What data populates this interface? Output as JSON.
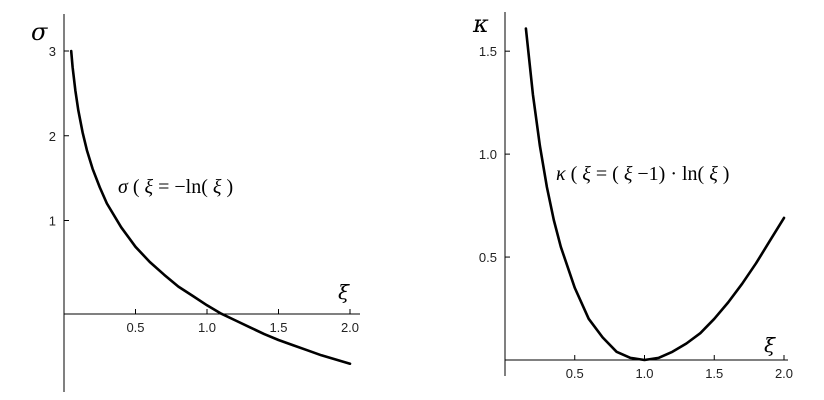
{
  "chart_data": [
    {
      "type": "line",
      "ylabel": "σ",
      "xlabel": "ξ",
      "xlim": [
        0.0,
        2.0
      ],
      "ylim": [
        -1.0,
        3.0
      ],
      "x_ticks": [
        0.5,
        1.0,
        1.5,
        2.0
      ],
      "x_tick_labels": [
        "0.5",
        "1.0",
        "1.5",
        "2.0"
      ],
      "y_ticks": [
        1,
        2,
        3
      ],
      "y_tick_labels": [
        "1",
        "2",
        "3"
      ],
      "annotation": {
        "name": "σ",
        "arg": "ξ",
        "equals": " = −ln(",
        "end": ")"
      },
      "grid": false,
      "series": [
        {
          "x": [
            0.05,
            0.06,
            0.08,
            0.1,
            0.13,
            0.16,
            0.2,
            0.25,
            0.3,
            0.4,
            0.5,
            0.6,
            0.7,
            0.8,
            0.9,
            1.0,
            1.1,
            1.2,
            1.3,
            1.4,
            1.5,
            1.6,
            1.7,
            1.8,
            1.9,
            2.0
          ],
          "y": [
            3.0,
            2.81,
            2.53,
            2.3,
            2.04,
            1.83,
            1.61,
            1.39,
            1.2,
            0.92,
            0.69,
            0.51,
            0.36,
            0.22,
            0.11,
            0.0,
            -0.1,
            -0.18,
            -0.26,
            -0.34,
            -0.41,
            -0.47,
            -0.53,
            -0.59,
            -0.64,
            -0.69
          ]
        }
      ]
    },
    {
      "type": "line",
      "ylabel": "κ",
      "xlabel": "ξ",
      "xlim": [
        0.0,
        2.0
      ],
      "ylim": [
        0.0,
        1.7
      ],
      "x_ticks": [
        0.5,
        1.0,
        1.5,
        2.0
      ],
      "x_tick_labels": [
        "0.5",
        "1.0",
        "1.5",
        "2.0"
      ],
      "y_ticks": [
        0.5,
        1.0,
        1.5
      ],
      "y_tick_labels": [
        "0.5",
        "1.0",
        "1.5"
      ],
      "annotation": {
        "name": "κ",
        "arg": "ξ",
        "equals": " = (",
        "mid": " −1) · ln(",
        "end": ")"
      },
      "grid": false,
      "series": [
        {
          "x": [
            0.15,
            0.2,
            0.25,
            0.3,
            0.35,
            0.4,
            0.5,
            0.6,
            0.7,
            0.8,
            0.9,
            1.0,
            1.1,
            1.2,
            1.3,
            1.4,
            1.5,
            1.6,
            1.7,
            1.8,
            1.9,
            2.0
          ],
          "y": [
            1.61,
            1.29,
            1.04,
            0.84,
            0.68,
            0.55,
            0.35,
            0.2,
            0.11,
            0.04,
            0.01,
            0.0,
            0.01,
            0.04,
            0.08,
            0.13,
            0.2,
            0.28,
            0.37,
            0.47,
            0.58,
            0.69
          ]
        }
      ]
    }
  ]
}
